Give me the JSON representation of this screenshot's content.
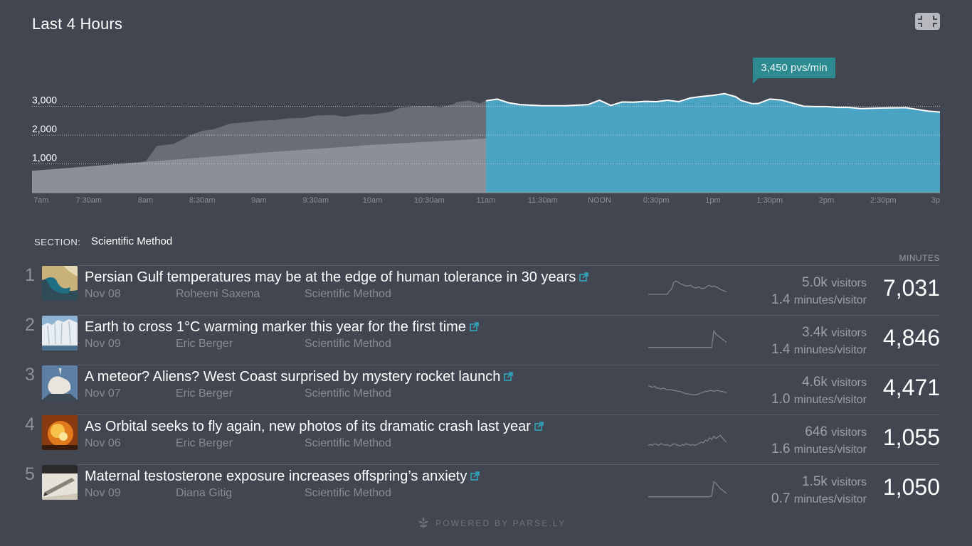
{
  "header": {
    "title": "Last 4 Hours"
  },
  "colors": {
    "background": "#424650",
    "accent": "#2d8a91",
    "live_fill": "#4aa3c3",
    "history_fill": "#6a6d74",
    "average_fill": "#8c8f95"
  },
  "tooltip": {
    "text": "3,450 pvs/min"
  },
  "chart_data": {
    "type": "area",
    "title": "Last 4 Hours",
    "xlabel": "",
    "ylabel": "",
    "y_ticks": [
      "3,000",
      "2,000",
      "1,000"
    ],
    "y_tick_values": [
      3000,
      2000,
      1000
    ],
    "ylim": [
      0,
      3250
    ],
    "x_ticks": [
      "7am",
      "7:30am",
      "8am",
      "8:30am",
      "9am",
      "9:30am",
      "10am",
      "10:30am",
      "11am",
      "11:30am",
      "NOON",
      "0:30pm",
      "1pm",
      "1:30pm",
      "2pm",
      "2:30pm",
      "3p"
    ],
    "grid": "horizontal-dotted",
    "series": [
      {
        "x_hours": [
          7,
          7.25,
          7.5,
          7.75,
          8,
          8.1,
          8.25,
          8.4,
          8.5,
          8.6,
          8.75,
          8.9,
          9,
          9.15,
          9.25,
          9.4,
          9.5,
          9.65,
          9.75,
          9.9,
          10,
          10.15,
          10.25,
          10.4,
          10.5,
          10.6,
          10.7,
          10.75,
          10.85,
          10.95,
          11
        ],
        "values": [
          720,
          820,
          910,
          1000,
          1080,
          1620,
          1700,
          2000,
          2150,
          2200,
          2400,
          2450,
          2500,
          2520,
          2580,
          2600,
          2680,
          2700,
          2640,
          2720,
          2720,
          2800,
          2950,
          3000,
          3020,
          2960,
          3060,
          3150,
          3200,
          3100,
          3200
        ]
      },
      {
        "x_hours": [
          7,
          8,
          9,
          10,
          11
        ],
        "values": [
          760,
          1070,
          1380,
          1660,
          1880
        ]
      },
      {
        "x_hours": [
          11,
          11.1,
          11.2,
          11.3,
          11.5,
          11.7,
          11.9,
          12,
          12.1,
          12.2,
          12.3,
          12.4,
          12.5,
          12.6,
          12.7,
          12.8,
          12.9,
          13,
          13.1,
          13.2,
          13.25,
          13.35,
          13.4,
          13.5,
          13.6,
          13.7,
          13.8,
          13.9,
          14,
          14.1,
          14.2,
          14.3,
          14.5,
          14.7,
          14.9,
          15
        ],
        "values": [
          3190,
          3250,
          3120,
          3060,
          3020,
          3020,
          3060,
          3210,
          3030,
          3150,
          3140,
          3170,
          3160,
          3210,
          3160,
          3290,
          3340,
          3380,
          3440,
          3330,
          3200,
          3090,
          3100,
          3250,
          3220,
          3110,
          3000,
          2990,
          2990,
          2960,
          2960,
          2920,
          2940,
          2950,
          2830,
          2800
        ]
      }
    ]
  },
  "section": {
    "label": "SECTION:",
    "value": "Scientific Method"
  },
  "list": {
    "column_header": "MINUTES",
    "visitors_label": "visitors",
    "mpv_label": "minutes/visitor",
    "items": [
      {
        "rank": "1",
        "title": "Persian Gulf temperatures may be at the edge of human tolerance in 30 years",
        "date": "Nov 08",
        "author": "Roheeni Saxena",
        "section": "Scientific Method",
        "visitors": "5.0k",
        "mpv": "1.4",
        "minutes": "7,031",
        "spark": [
          6,
          6,
          6,
          6,
          6,
          6,
          6,
          6,
          6,
          6,
          10,
          12,
          20,
          22,
          21,
          19,
          18,
          17,
          16,
          16,
          17,
          15,
          14,
          14,
          15,
          13,
          13,
          14,
          16,
          17,
          15,
          16,
          15,
          14,
          12,
          11,
          10,
          9
        ]
      },
      {
        "rank": "2",
        "title": "Earth to cross 1°C warming marker this year for the first time",
        "date": "Nov 09",
        "author": "Eric Berger",
        "section": "Scientific Method",
        "visitors": "3.4k",
        "mpv": "1.4",
        "minutes": "4,846",
        "spark": [
          2,
          2,
          2,
          2,
          2,
          2,
          2,
          2,
          2,
          2,
          2,
          2,
          2,
          2,
          2,
          2,
          2,
          2,
          2,
          2,
          2,
          2,
          2,
          2,
          2,
          2,
          2,
          2,
          2,
          2,
          2,
          22,
          18,
          16,
          14,
          12,
          10,
          8
        ]
      },
      {
        "rank": "3",
        "title": "A meteor? Aliens? West Coast surprised by mystery rocket launch",
        "date": "Nov 07",
        "author": "Eric Berger",
        "section": "Scientific Method",
        "visitors": "4.6k",
        "mpv": "1.0",
        "minutes": "4,471",
        "spark": [
          16,
          15,
          14,
          15,
          13,
          13,
          12,
          13,
          12,
          11,
          11,
          11,
          10,
          10,
          9,
          9,
          8,
          7,
          6,
          6,
          5,
          5,
          5,
          5,
          6,
          7,
          8,
          9,
          9,
          10,
          10,
          9,
          10,
          10,
          9,
          9,
          8,
          8
        ]
      },
      {
        "rank": "4",
        "title": "As Orbital seeks to fly again, new photos of its dramatic crash last year",
        "date": "Nov 06",
        "author": "Eric Berger",
        "section": "Scientific Method",
        "visitors": "646",
        "mpv": "1.6",
        "minutes": "1,055",
        "spark": [
          4,
          5,
          4,
          6,
          5,
          4,
          6,
          5,
          4,
          5,
          3,
          4,
          6,
          5,
          4,
          3,
          5,
          4,
          6,
          5,
          4,
          5,
          4,
          5,
          6,
          8,
          7,
          10,
          9,
          13,
          11,
          15,
          12,
          14,
          16,
          13,
          10,
          8
        ]
      },
      {
        "rank": "5",
        "title": "Maternal testosterone exposure increases offspring’s anxiety",
        "date": "Nov 09",
        "author": "Diana Gitig",
        "section": "Scientific Method",
        "visitors": "1.5k",
        "mpv": "0.7",
        "minutes": "1,050",
        "spark": [
          2,
          2,
          2,
          2,
          2,
          2,
          2,
          2,
          2,
          2,
          2,
          2,
          2,
          2,
          2,
          2,
          2,
          2,
          2,
          2,
          2,
          2,
          2,
          2,
          2,
          2,
          2,
          2,
          2,
          2,
          3,
          20,
          18,
          15,
          12,
          10,
          8,
          6
        ]
      }
    ]
  },
  "footer": {
    "text": "POWERED BY PARSE.LY"
  }
}
